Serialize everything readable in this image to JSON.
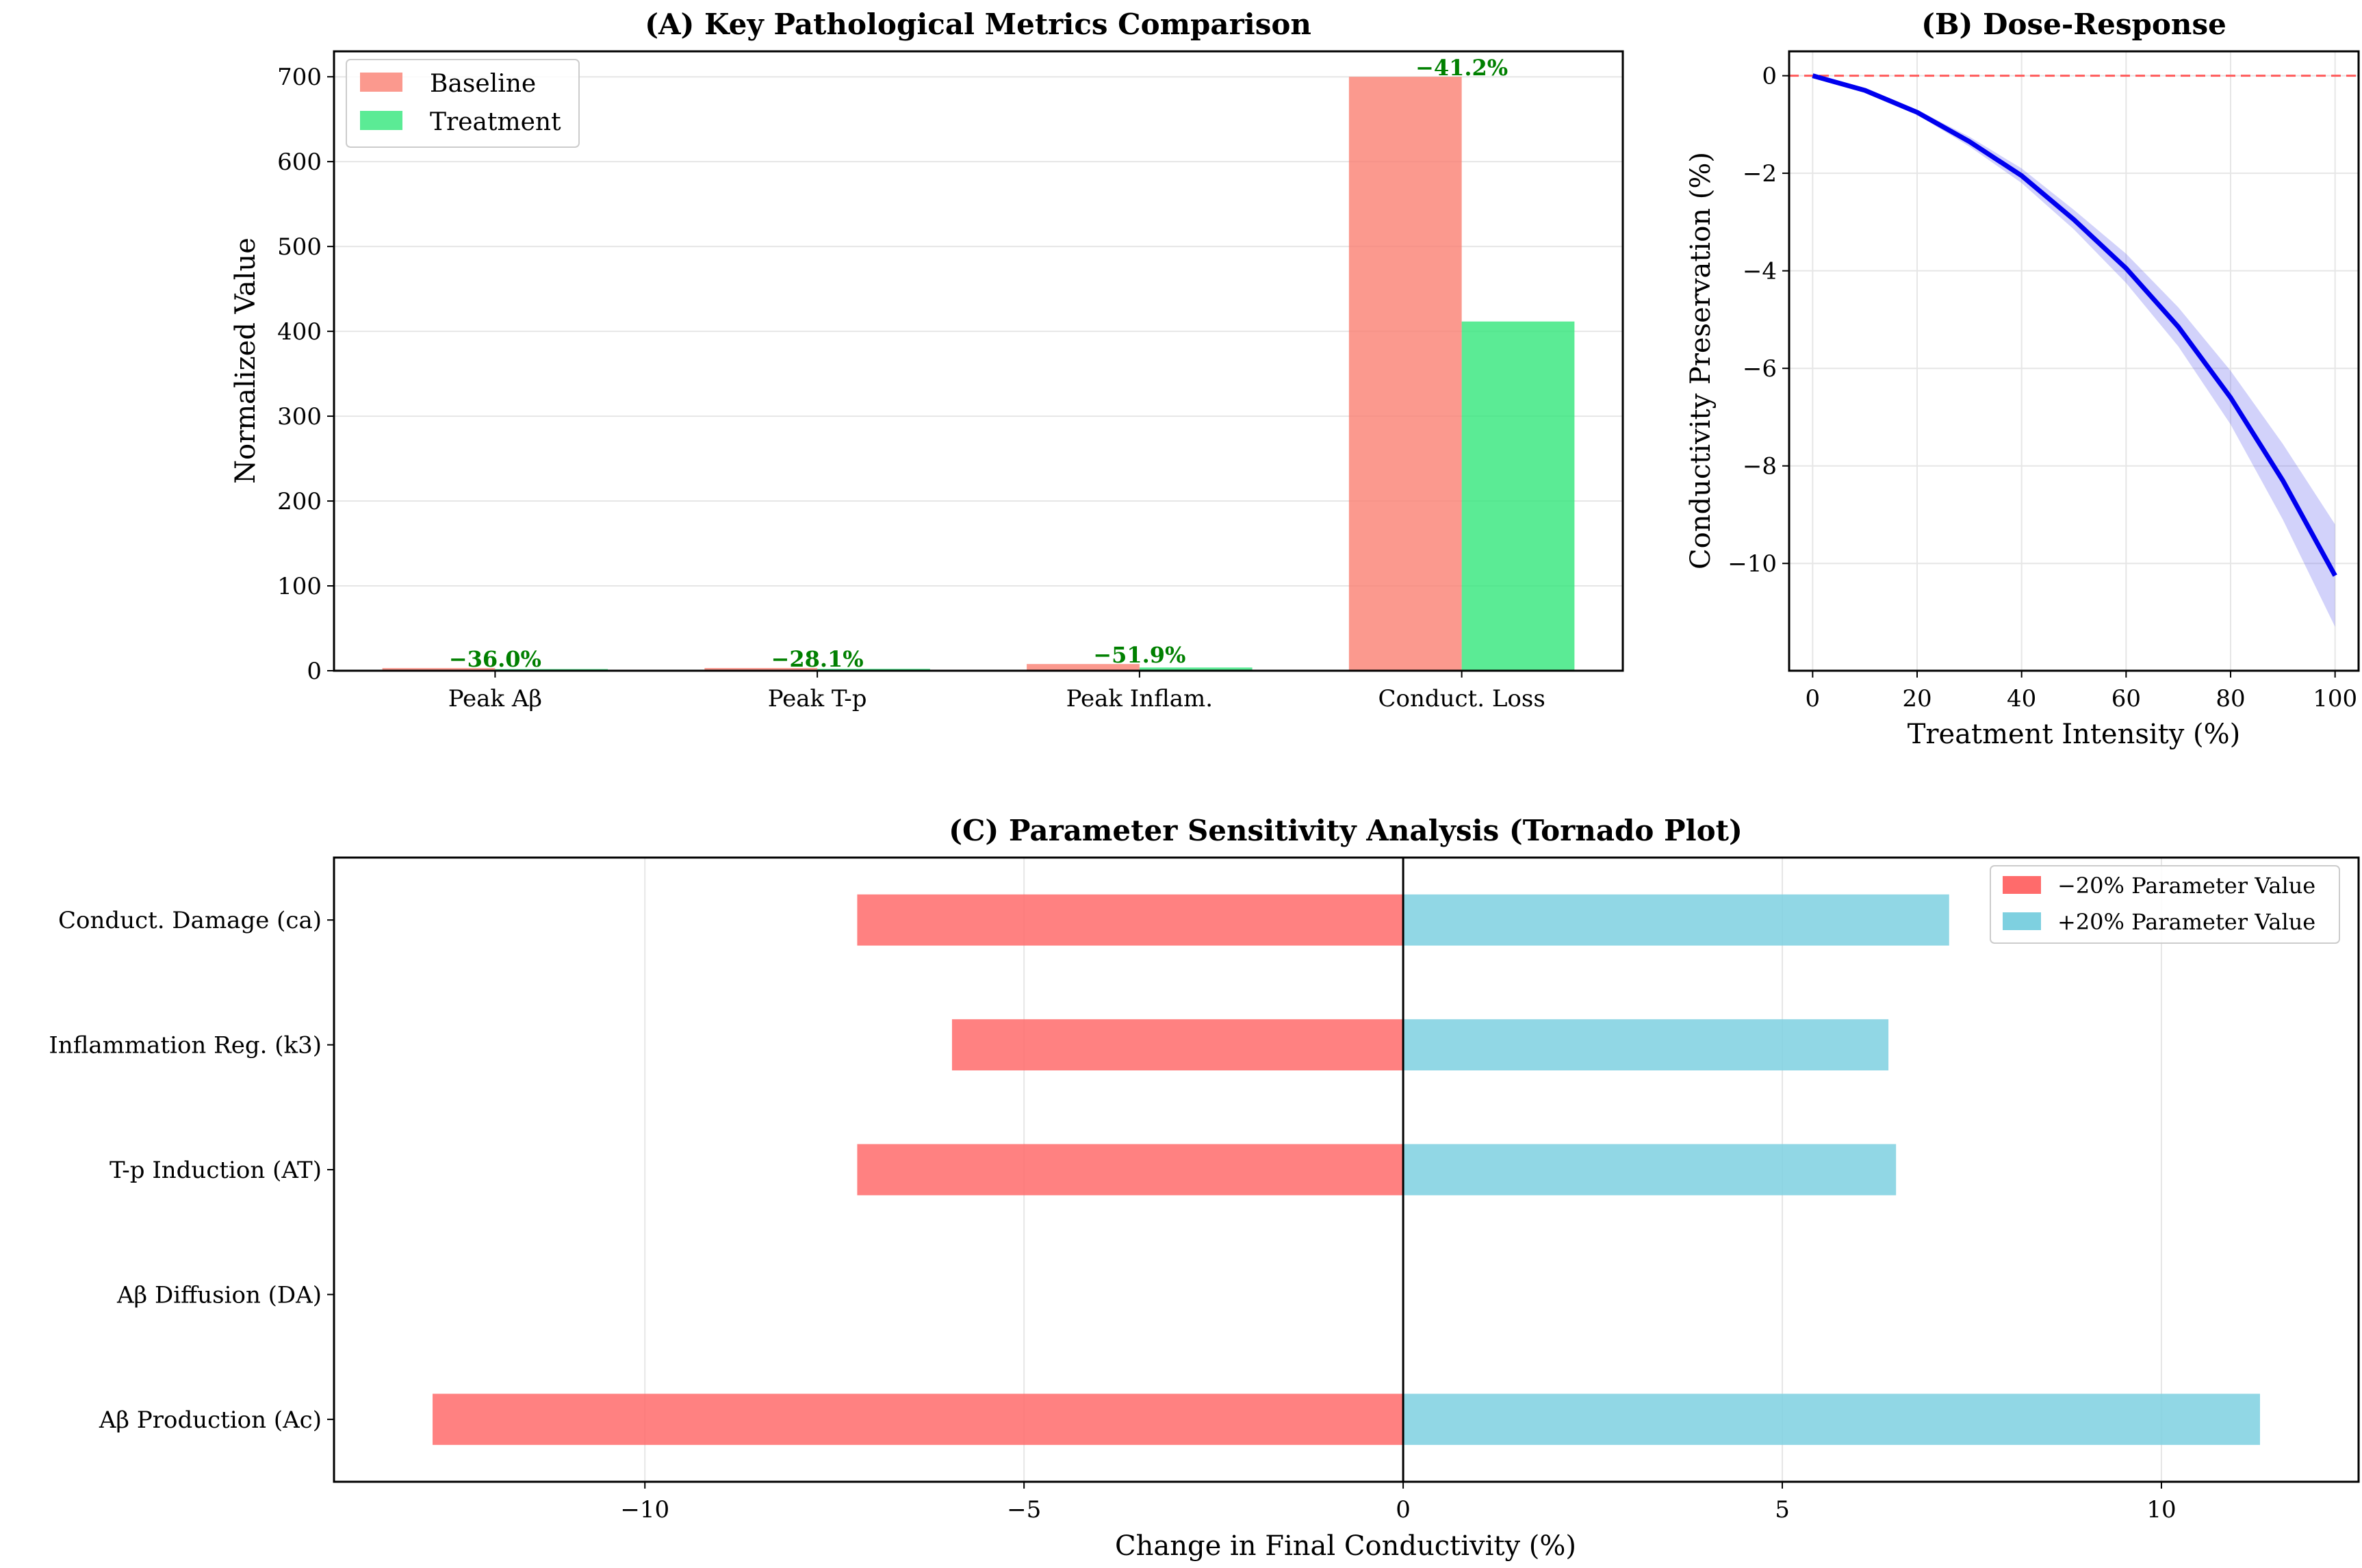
{
  "colors": {
    "baseline": "#FA8072",
    "treatment": "#32E67A",
    "curve": "#0000EE",
    "band": "#6B6BEE",
    "refline": "#FF5A5A",
    "minus20": "#FF6B6B",
    "plus20": "#7ED0E0",
    "pct_text": "#008000"
  },
  "chart_data": [
    {
      "id": "A",
      "type": "bar",
      "title": "(A) Key Pathological Metrics Comparison",
      "xlabel": "",
      "ylabel": "Normalized Value",
      "ylim": [
        0,
        730
      ],
      "yticks": [
        0,
        100,
        200,
        300,
        400,
        500,
        600,
        700
      ],
      "grid": true,
      "legend_position": "top-left",
      "categories": [
        "Peak Aβ",
        "Peak T-p",
        "Peak Inflam.",
        "Conduct. Loss"
      ],
      "series": [
        {
          "name": "Baseline",
          "color_key": "baseline",
          "values": [
            3.1,
            3.2,
            7.9,
            700
          ]
        },
        {
          "name": "Treatment",
          "color_key": "treatment",
          "values": [
            2.0,
            2.3,
            3.8,
            411.6
          ]
        }
      ],
      "annotations": [
        "−36.0%",
        "−28.1%",
        "−51.9%",
        "−41.2%"
      ]
    },
    {
      "id": "B",
      "type": "line",
      "title": "(B) Dose-Response",
      "xlabel": "Treatment Intensity (%)",
      "ylabel": "Conductivity Preservation (%)",
      "xlim": [
        -4.5,
        104.5
      ],
      "ylim": [
        -12.2,
        0.5
      ],
      "xticks": [
        0,
        20,
        40,
        60,
        80,
        100
      ],
      "yticks": [
        0,
        -2,
        -4,
        -6,
        -8,
        -10
      ],
      "grid": true,
      "reference_line_y": 0,
      "x": [
        0,
        10,
        20,
        30,
        40,
        50,
        60,
        70,
        80,
        90,
        100
      ],
      "y": [
        0,
        -0.3,
        -0.75,
        -1.35,
        -2.05,
        -2.95,
        -3.95,
        -5.15,
        -6.6,
        -8.3,
        -10.25
      ],
      "band_lower": [
        0,
        -0.32,
        -0.8,
        -1.45,
        -2.2,
        -3.15,
        -4.25,
        -5.55,
        -7.15,
        -9.1,
        -11.3
      ],
      "band_upper": [
        0,
        -0.28,
        -0.7,
        -1.25,
        -1.9,
        -2.75,
        -3.65,
        -4.75,
        -6.05,
        -7.55,
        -9.2
      ]
    },
    {
      "id": "C",
      "type": "bar",
      "orientation": "horizontal",
      "title": "(C) Parameter Sensitivity Analysis (Tornado Plot)",
      "xlabel": "Change in Final Conductivity (%)",
      "ylabel": "",
      "xlim": [
        -14.1,
        12.6
      ],
      "xticks": [
        -10,
        -5,
        0,
        5,
        10
      ],
      "grid": true,
      "legend_position": "top-right",
      "categories": [
        "Conduct. Damage (ca)",
        "Inflammation Reg. (k3)",
        "T-p Induction (AT)",
        "Aβ Diffusion (DA)",
        "Aβ Production (Ac)"
      ],
      "series": [
        {
          "name": "−20% Parameter Value",
          "color_key": "minus20",
          "values": [
            -7.2,
            -5.95,
            -7.2,
            0,
            -12.8
          ]
        },
        {
          "name": "+20% Parameter Value",
          "color_key": "plus20",
          "values": [
            7.2,
            6.4,
            6.5,
            0,
            11.3
          ]
        }
      ]
    }
  ]
}
